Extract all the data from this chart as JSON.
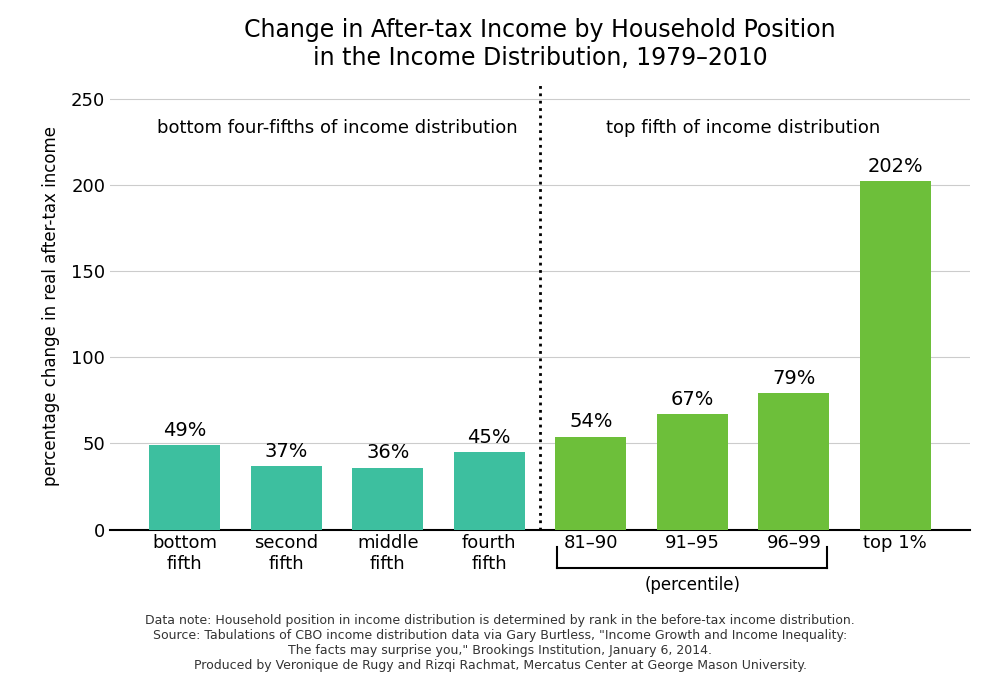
{
  "title": "Change in After-tax Income by Household Position\nin the Income Distribution, 1979–2010",
  "ylabel": "percentage change in real after-tax income",
  "categories": [
    "bottom\nfifth",
    "second\nfifth",
    "middle\nfifth",
    "fourth\nfifth",
    "81–90",
    "91–95",
    "96–99",
    "top 1%"
  ],
  "values": [
    49,
    37,
    36,
    45,
    54,
    67,
    79,
    202
  ],
  "bar_colors": [
    "#3dbf9f",
    "#3dbf9f",
    "#3dbf9f",
    "#3dbf9f",
    "#6dbf3a",
    "#6dbf3a",
    "#6dbf3a",
    "#6dbf3a"
  ],
  "ylim": [
    0,
    260
  ],
  "yticks": [
    0,
    50,
    100,
    150,
    200,
    250
  ],
  "left_label": "bottom four-fifths of income distribution",
  "right_label": "top fifth of income distribution",
  "percentile_label": "(percentile)",
  "footnote": "Data note: Household position in income distribution is determined by rank in the before-tax income distribution.\nSource: Tabulations of CBO income distribution data via Gary Burtless, \"Income Growth and Income Inequality:\nThe facts may surprise you,\" Brookings Institution, January 6, 2014.\nProduced by Veronique de Rugy and Rizqi Rachmat, Mercatus Center at George Mason University.",
  "title_fontsize": 17,
  "label_fontsize": 12,
  "tick_fontsize": 13,
  "bar_label_fontsize": 14,
  "section_label_fontsize": 13,
  "footnote_fontsize": 9,
  "background_color": "#ffffff"
}
